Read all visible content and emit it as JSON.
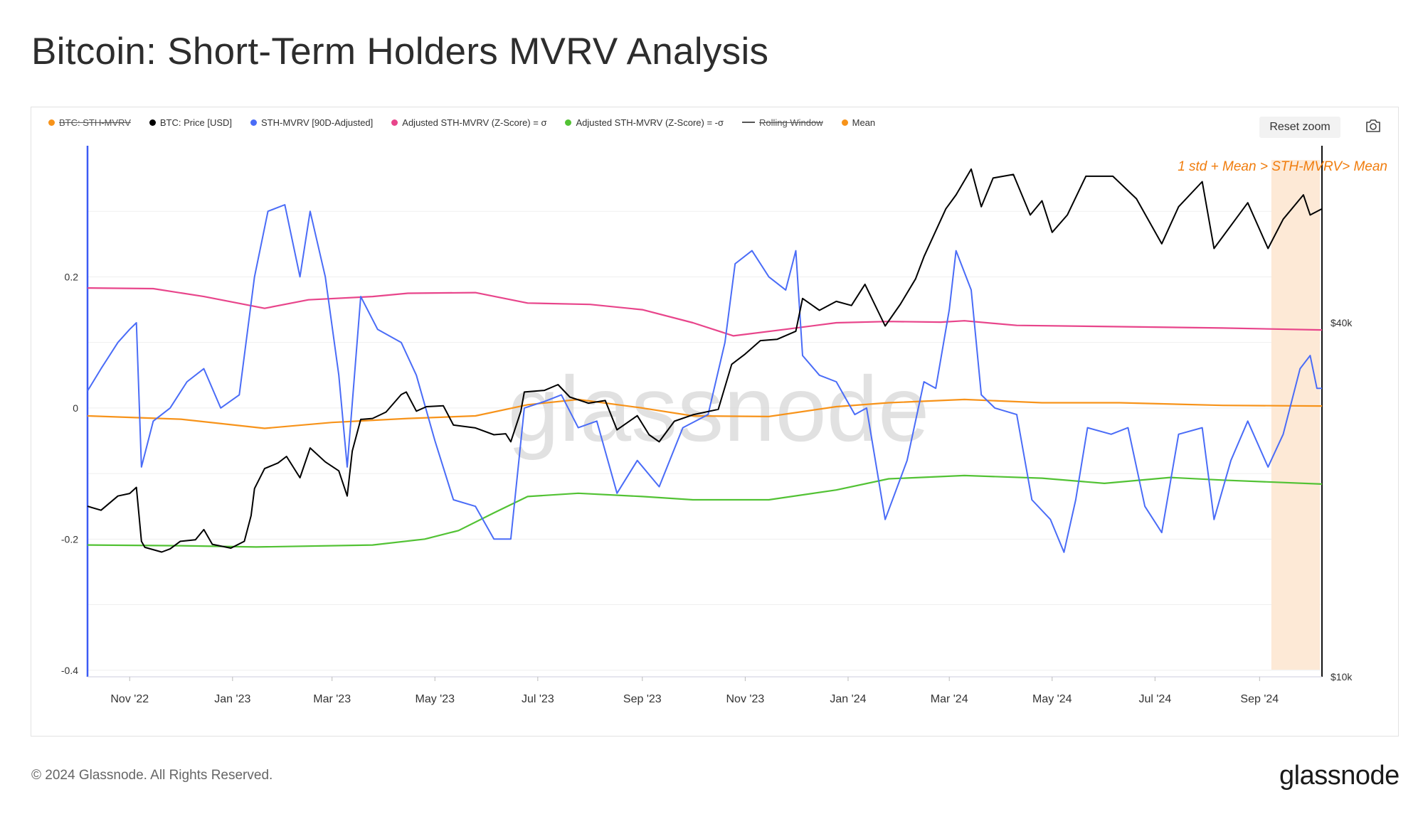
{
  "page": {
    "title": "Bitcoin: Short-Term Holders MVRV Analysis",
    "footer": "© 2024 Glassnode. All Rights Reserved.",
    "logo": "glassnode",
    "reset_zoom_label": "Reset zoom",
    "camera_icon": "camera-icon"
  },
  "legend": [
    {
      "label": "BTC: STH-MVRV",
      "color": "#f7931a",
      "marker": "dot-line",
      "hidden": true
    },
    {
      "label": "BTC: Price [USD]",
      "color": "#000000",
      "marker": "dot",
      "hidden": false
    },
    {
      "label": "STH-MVRV [90D-Adjusted]",
      "color": "#4a6cf7",
      "marker": "dot",
      "hidden": false
    },
    {
      "label": "Adjusted STH-MVRV (Z-Score) = σ",
      "color": "#e8458b",
      "marker": "dot",
      "hidden": false
    },
    {
      "label": "Adjusted STH-MVRV (Z-Score) = -σ",
      "color": "#52c234",
      "marker": "dot",
      "hidden": false
    },
    {
      "label": "Rolling Window",
      "color": "#555555",
      "marker": "line",
      "hidden": true
    },
    {
      "label": "Mean",
      "color": "#f7931a",
      "marker": "dot",
      "hidden": false
    }
  ],
  "chart_data": {
    "type": "line",
    "title": "Bitcoin: Short-Term Holders MVRV Analysis",
    "watermark": "glassnode",
    "annotation": "1 std + Mean > STH-MVRV>  Mean",
    "highlight": {
      "start": "2024-09-08",
      "end": "2024-10-08",
      "color": "#fde9d6"
    },
    "x_ticks": [
      "Nov '22",
      "Jan '23",
      "Mar '23",
      "May '23",
      "Jul '23",
      "Sep '23",
      "Nov '23",
      "Jan '24",
      "Mar '24",
      "May '24",
      "Jul '24",
      "Sep '24"
    ],
    "x_range": [
      "2022-10-07",
      "2024-10-08"
    ],
    "y_left": {
      "ticks": [
        0.2,
        0,
        -0.2,
        -0.4
      ],
      "tick_labels": [
        "0.2",
        "0",
        "-0.2",
        "-0.4"
      ],
      "range": [
        -0.41,
        0.4
      ]
    },
    "y_right": {
      "scale": "log",
      "ticks": [
        40000,
        10000
      ],
      "tick_labels": [
        "$40k",
        "$10k"
      ],
      "range": [
        10000,
        80000
      ]
    },
    "series": [
      {
        "name": "BTC: Price [USD]",
        "axis": "right",
        "color": "#000000",
        "points": [
          [
            "2022-10-07",
            19500
          ],
          [
            "2022-10-15",
            19200
          ],
          [
            "2022-10-25",
            20300
          ],
          [
            "2022-11-01",
            20500
          ],
          [
            "2022-11-05",
            21000
          ],
          [
            "2022-11-08",
            17000
          ],
          [
            "2022-11-10",
            16600
          ],
          [
            "2022-11-20",
            16300
          ],
          [
            "2022-11-25",
            16500
          ],
          [
            "2022-12-01",
            17000
          ],
          [
            "2022-12-10",
            17100
          ],
          [
            "2022-12-15",
            17800
          ],
          [
            "2022-12-20",
            16800
          ],
          [
            "2022-12-31",
            16550
          ],
          [
            "2023-01-08",
            17000
          ],
          [
            "2023-01-12",
            18800
          ],
          [
            "2023-01-14",
            20900
          ],
          [
            "2023-01-20",
            22600
          ],
          [
            "2023-01-28",
            23100
          ],
          [
            "2023-02-02",
            23700
          ],
          [
            "2023-02-10",
            21800
          ],
          [
            "2023-02-16",
            24500
          ],
          [
            "2023-02-25",
            23200
          ],
          [
            "2023-03-05",
            22400
          ],
          [
            "2023-03-10",
            20300
          ],
          [
            "2023-03-13",
            24200
          ],
          [
            "2023-03-18",
            27400
          ],
          [
            "2023-03-25",
            27500
          ],
          [
            "2023-04-02",
            28200
          ],
          [
            "2023-04-11",
            30200
          ],
          [
            "2023-04-14",
            30500
          ],
          [
            "2023-04-20",
            28300
          ],
          [
            "2023-04-26",
            28800
          ],
          [
            "2023-05-06",
            28900
          ],
          [
            "2023-05-12",
            26800
          ],
          [
            "2023-05-25",
            26500
          ],
          [
            "2023-06-05",
            25800
          ],
          [
            "2023-06-12",
            25900
          ],
          [
            "2023-06-15",
            25100
          ],
          [
            "2023-06-21",
            28300
          ],
          [
            "2023-06-23",
            30500
          ],
          [
            "2023-07-05",
            30700
          ],
          [
            "2023-07-13",
            31400
          ],
          [
            "2023-07-20",
            29900
          ],
          [
            "2023-07-31",
            29200
          ],
          [
            "2023-08-10",
            29500
          ],
          [
            "2023-08-17",
            26300
          ],
          [
            "2023-08-29",
            27800
          ],
          [
            "2023-09-05",
            25800
          ],
          [
            "2023-09-11",
            25100
          ],
          [
            "2023-09-20",
            27200
          ],
          [
            "2023-10-01",
            27900
          ],
          [
            "2023-10-16",
            28500
          ],
          [
            "2023-10-24",
            34000
          ],
          [
            "2023-11-01",
            35400
          ],
          [
            "2023-11-10",
            37300
          ],
          [
            "2023-11-20",
            37500
          ],
          [
            "2023-12-01",
            38700
          ],
          [
            "2023-12-05",
            44000
          ],
          [
            "2023-12-15",
            42000
          ],
          [
            "2023-12-25",
            43500
          ],
          [
            "2024-01-03",
            42800
          ],
          [
            "2024-01-11",
            46500
          ],
          [
            "2024-01-23",
            39500
          ],
          [
            "2024-02-01",
            43000
          ],
          [
            "2024-02-10",
            47500
          ],
          [
            "2024-02-15",
            51800
          ],
          [
            "2024-02-28",
            62500
          ],
          [
            "2024-03-05",
            66000
          ],
          [
            "2024-03-14",
            73000
          ],
          [
            "2024-03-20",
            63000
          ],
          [
            "2024-03-27",
            70500
          ],
          [
            "2024-04-08",
            71500
          ],
          [
            "2024-04-18",
            61000
          ],
          [
            "2024-04-25",
            64500
          ],
          [
            "2024-05-01",
            57000
          ],
          [
            "2024-05-10",
            61000
          ],
          [
            "2024-05-21",
            71000
          ],
          [
            "2024-06-06",
            71000
          ],
          [
            "2024-06-20",
            65000
          ],
          [
            "2024-07-05",
            54500
          ],
          [
            "2024-07-15",
            63000
          ],
          [
            "2024-07-29",
            69500
          ],
          [
            "2024-08-05",
            53500
          ],
          [
            "2024-08-25",
            64000
          ],
          [
            "2024-09-06",
            53500
          ],
          [
            "2024-09-15",
            60000
          ],
          [
            "2024-09-27",
            66000
          ],
          [
            "2024-10-01",
            61000
          ],
          [
            "2024-10-08",
            62500
          ]
        ]
      },
      {
        "name": "STH-MVRV [90D-Adjusted]",
        "axis": "left",
        "color": "#4a6cf7",
        "points": [
          [
            "2022-10-07",
            0.026
          ],
          [
            "2022-10-15",
            0.06
          ],
          [
            "2022-10-25",
            0.1
          ],
          [
            "2022-11-01",
            0.12
          ],
          [
            "2022-11-05",
            0.13
          ],
          [
            "2022-11-08",
            -0.09
          ],
          [
            "2022-11-15",
            -0.02
          ],
          [
            "2022-11-25",
            0.0
          ],
          [
            "2022-12-05",
            0.04
          ],
          [
            "2022-12-15",
            0.06
          ],
          [
            "2022-12-25",
            0.0
          ],
          [
            "2023-01-05",
            0.02
          ],
          [
            "2023-01-14",
            0.2
          ],
          [
            "2023-01-22",
            0.3
          ],
          [
            "2023-02-01",
            0.31
          ],
          [
            "2023-02-10",
            0.2
          ],
          [
            "2023-02-16",
            0.3
          ],
          [
            "2023-02-25",
            0.2
          ],
          [
            "2023-03-05",
            0.05
          ],
          [
            "2023-03-10",
            -0.09
          ],
          [
            "2023-03-18",
            0.17
          ],
          [
            "2023-03-28",
            0.12
          ],
          [
            "2023-04-11",
            0.1
          ],
          [
            "2023-04-20",
            0.05
          ],
          [
            "2023-05-01",
            -0.05
          ],
          [
            "2023-05-12",
            -0.14
          ],
          [
            "2023-05-25",
            -0.15
          ],
          [
            "2023-06-05",
            -0.2
          ],
          [
            "2023-06-15",
            -0.2
          ],
          [
            "2023-06-23",
            0.0
          ],
          [
            "2023-07-05",
            0.01
          ],
          [
            "2023-07-15",
            0.02
          ],
          [
            "2023-07-25",
            -0.03
          ],
          [
            "2023-08-05",
            -0.02
          ],
          [
            "2023-08-17",
            -0.13
          ],
          [
            "2023-08-29",
            -0.08
          ],
          [
            "2023-09-11",
            -0.12
          ],
          [
            "2023-09-25",
            -0.03
          ],
          [
            "2023-10-10",
            -0.01
          ],
          [
            "2023-10-20",
            0.1
          ],
          [
            "2023-10-26",
            0.22
          ],
          [
            "2023-11-05",
            0.24
          ],
          [
            "2023-11-15",
            0.2
          ],
          [
            "2023-11-25",
            0.18
          ],
          [
            "2023-12-01",
            0.24
          ],
          [
            "2023-12-05",
            0.08
          ],
          [
            "2023-12-15",
            0.05
          ],
          [
            "2023-12-25",
            0.04
          ],
          [
            "2024-01-05",
            -0.01
          ],
          [
            "2024-01-12",
            0.0
          ],
          [
            "2024-01-23",
            -0.17
          ],
          [
            "2024-02-05",
            -0.08
          ],
          [
            "2024-02-15",
            0.04
          ],
          [
            "2024-02-22",
            0.03
          ],
          [
            "2024-03-01",
            0.15
          ],
          [
            "2024-03-05",
            0.24
          ],
          [
            "2024-03-14",
            0.18
          ],
          [
            "2024-03-20",
            0.02
          ],
          [
            "2024-03-28",
            0.0
          ],
          [
            "2024-04-10",
            -0.01
          ],
          [
            "2024-04-19",
            -0.14
          ],
          [
            "2024-04-30",
            -0.17
          ],
          [
            "2024-05-08",
            -0.22
          ],
          [
            "2024-05-15",
            -0.14
          ],
          [
            "2024-05-22",
            -0.03
          ],
          [
            "2024-06-05",
            -0.04
          ],
          [
            "2024-06-15",
            -0.03
          ],
          [
            "2024-06-25",
            -0.15
          ],
          [
            "2024-07-05",
            -0.19
          ],
          [
            "2024-07-15",
            -0.04
          ],
          [
            "2024-07-29",
            -0.03
          ],
          [
            "2024-08-05",
            -0.17
          ],
          [
            "2024-08-15",
            -0.08
          ],
          [
            "2024-08-25",
            -0.02
          ],
          [
            "2024-09-06",
            -0.09
          ],
          [
            "2024-09-15",
            -0.04
          ],
          [
            "2024-09-25",
            0.06
          ],
          [
            "2024-10-01",
            0.08
          ],
          [
            "2024-10-05",
            0.03
          ],
          [
            "2024-10-08",
            0.03
          ]
        ]
      },
      {
        "name": "Adjusted STH-MVRV (Z-Score) = σ",
        "axis": "left",
        "color": "#e8458b",
        "points": [
          [
            "2022-10-07",
            0.183
          ],
          [
            "2022-11-15",
            0.182
          ],
          [
            "2022-12-15",
            0.17
          ],
          [
            "2023-01-20",
            0.152
          ],
          [
            "2023-02-15",
            0.165
          ],
          [
            "2023-03-25",
            0.17
          ],
          [
            "2023-04-15",
            0.175
          ],
          [
            "2023-05-25",
            0.176
          ],
          [
            "2023-06-25",
            0.16
          ],
          [
            "2023-08-01",
            0.158
          ],
          [
            "2023-09-01",
            0.15
          ],
          [
            "2023-10-01",
            0.13
          ],
          [
            "2023-10-25",
            0.11
          ],
          [
            "2023-11-25",
            0.12
          ],
          [
            "2023-12-25",
            0.13
          ],
          [
            "2024-01-25",
            0.132
          ],
          [
            "2024-02-25",
            0.131
          ],
          [
            "2024-03-10",
            0.133
          ],
          [
            "2024-04-10",
            0.126
          ],
          [
            "2024-06-10",
            0.124
          ],
          [
            "2024-08-10",
            0.122
          ],
          [
            "2024-10-08",
            0.119
          ]
        ]
      },
      {
        "name": "Adjusted STH-MVRV (Z-Score) = -σ",
        "axis": "left",
        "color": "#52c234",
        "points": [
          [
            "2022-10-07",
            -0.209
          ],
          [
            "2022-12-01",
            -0.21
          ],
          [
            "2023-01-15",
            -0.212
          ],
          [
            "2023-03-25",
            -0.209
          ],
          [
            "2023-04-25",
            -0.2
          ],
          [
            "2023-05-15",
            -0.187
          ],
          [
            "2023-06-05",
            -0.16
          ],
          [
            "2023-06-25",
            -0.135
          ],
          [
            "2023-07-25",
            -0.13
          ],
          [
            "2023-09-01",
            -0.135
          ],
          [
            "2023-10-01",
            -0.14
          ],
          [
            "2023-11-15",
            -0.14
          ],
          [
            "2023-12-25",
            -0.125
          ],
          [
            "2024-01-25",
            -0.108
          ],
          [
            "2024-03-10",
            -0.103
          ],
          [
            "2024-04-25",
            -0.107
          ],
          [
            "2024-06-01",
            -0.115
          ],
          [
            "2024-07-10",
            -0.106
          ],
          [
            "2024-08-10",
            -0.11
          ],
          [
            "2024-10-08",
            -0.116
          ]
        ]
      },
      {
        "name": "Mean",
        "axis": "left",
        "color": "#f7931a",
        "points": [
          [
            "2022-10-07",
            -0.012
          ],
          [
            "2022-12-01",
            -0.017
          ],
          [
            "2023-01-20",
            -0.031
          ],
          [
            "2023-03-01",
            -0.022
          ],
          [
            "2023-04-15",
            -0.016
          ],
          [
            "2023-05-25",
            -0.012
          ],
          [
            "2023-06-25",
            0.005
          ],
          [
            "2023-07-25",
            0.013
          ],
          [
            "2023-09-01",
            0.0
          ],
          [
            "2023-10-01",
            -0.012
          ],
          [
            "2023-11-15",
            -0.013
          ],
          [
            "2023-12-25",
            0.002
          ],
          [
            "2024-01-25",
            0.008
          ],
          [
            "2024-03-10",
            0.013
          ],
          [
            "2024-04-25",
            0.008
          ],
          [
            "2024-06-10",
            0.008
          ],
          [
            "2024-08-10",
            0.004
          ],
          [
            "2024-10-08",
            0.003
          ]
        ]
      }
    ]
  }
}
